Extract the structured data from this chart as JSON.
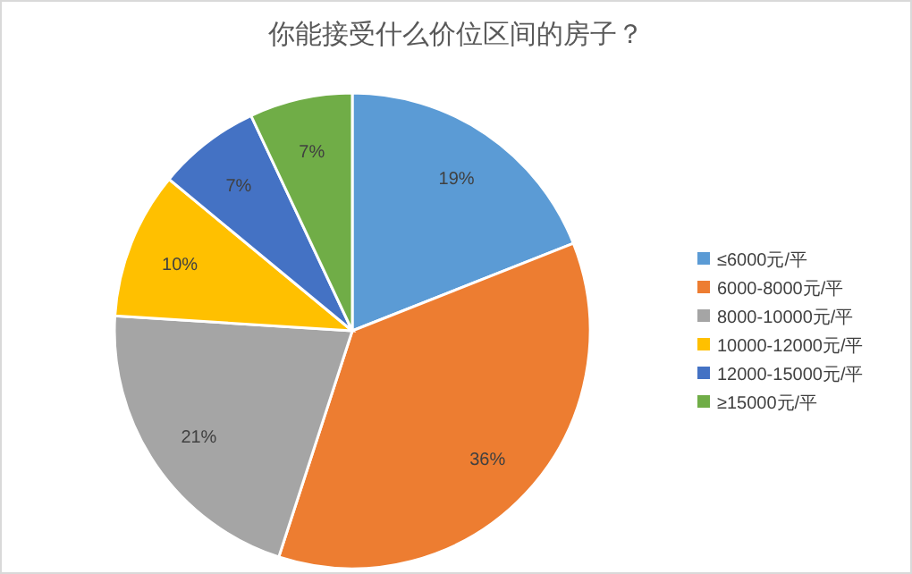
{
  "chart_data": {
    "type": "pie",
    "title": "你能接受什么价位区间的房子？",
    "categories": [
      "≤6000元/平",
      "6000-8000元/平",
      "8000-10000元/平",
      "10000-12000元/平",
      "12000-15000元/平",
      "≥15000元/平"
    ],
    "values": [
      19,
      36,
      21,
      10,
      7,
      7
    ],
    "value_labels": [
      "19%",
      "36%",
      "21%",
      "10%",
      "7%",
      "7%"
    ],
    "colors": [
      "#5b9bd5",
      "#ed7d31",
      "#a5a5a5",
      "#ffc000",
      "#4472c4",
      "#70ad47"
    ],
    "legend": "right"
  }
}
